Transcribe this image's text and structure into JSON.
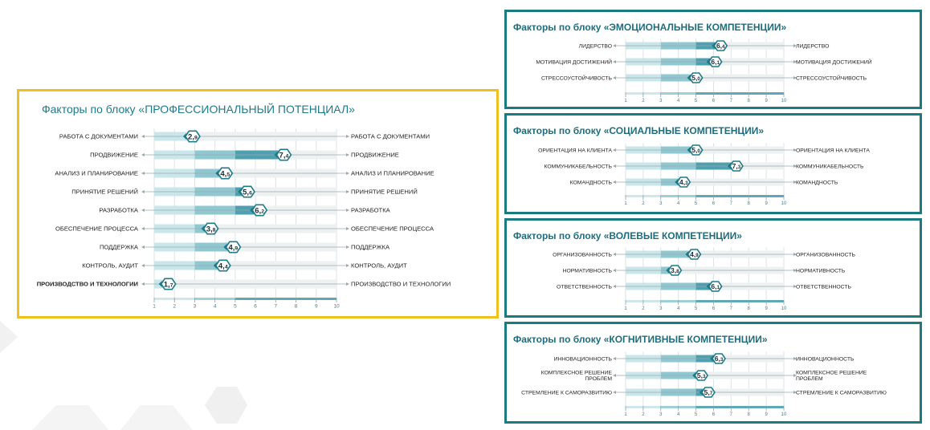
{
  "theme": {
    "accent": "#1f7a88",
    "bar_light": "#c9e6ea",
    "bar_mid": "#8fc8d1",
    "bar_dark": "#4e9faf",
    "main_border": "#f0c020",
    "side_border": "#1b7b81"
  },
  "panels": [
    {
      "title": "Факторы по блоку «ПРОФЕССИОНАЛЬНЫЙ ПОТЕНЦИАЛ»"
    },
    {
      "title": "Факторы по блоку «ЭМОЦИОНАЛЬНЫЕ КОМПЕТЕНЦИИ»"
    },
    {
      "title": "Факторы по блоку «СОЦИАЛЬНЫЕ КОМПЕТЕНЦИИ»"
    },
    {
      "title": "Факторы по блоку «ВОЛЕВЫЕ КОМПЕТЕНЦИИ»"
    },
    {
      "title": "Факторы по блоку «КОГНИТИВНЫЕ КОМПЕТЕНЦИИ»"
    }
  ],
  "chart_data": [
    {
      "type": "bar",
      "title": "Факторы по блоку «ПРОФЕССИОНАЛЬНЫЙ ПОТЕНЦИАЛ»",
      "xlim": [
        1,
        10
      ],
      "ticks": [
        "1",
        "2",
        "3",
        "4",
        "5",
        "6",
        "7",
        "8",
        "9",
        "10"
      ],
      "rows": [
        {
          "label": "РАБОТА С ДОКУМЕНТАМИ",
          "right_label": "РАБОТА С ДОКУМЕНТАМИ",
          "value": 2.9,
          "int": "2",
          "dec": "9"
        },
        {
          "label": "ПРОДВИЖЕНИЕ",
          "right_label": "ПРОДВИЖЕНИЕ",
          "value": 7.4,
          "int": "7",
          "dec": "4"
        },
        {
          "label": "АНАЛИЗ И ПЛАНИРОВАНИЕ",
          "right_label": "АНАЛИЗ И ПЛАНИРОВАНИЕ",
          "value": 4.5,
          "int": "4",
          "dec": "5"
        },
        {
          "label": "ПРИНЯТИЕ РЕШЕНИЙ",
          "right_label": "ПРИНЯТИЕ РЕШЕНИЙ",
          "value": 5.6,
          "int": "5",
          "dec": "6"
        },
        {
          "label": "РАЗРАБОТКА",
          "right_label": "РАЗРАБОТКА",
          "value": 6.2,
          "int": "6",
          "dec": "2"
        },
        {
          "label": "ОБЕСПЕЧЕНИЕ ПРОЦЕССА",
          "right_label": "ОБЕСПЕЧЕНИЕ ПРОЦЕССА",
          "value": 3.8,
          "int": "3",
          "dec": "8"
        },
        {
          "label": "ПОДДЕРЖКА",
          "right_label": "ПОДДЕРЖКА",
          "value": 4.9,
          "int": "4",
          "dec": "9"
        },
        {
          "label": "КОНТРОЛЬ, АУДИТ",
          "right_label": "КОНТРОЛЬ, АУДИТ",
          "value": 4.4,
          "int": "4",
          "dec": "4"
        },
        {
          "label": "ПРОИЗВОДСТВО И ТЕХНОЛОГИИ",
          "right_label": "ПРОИЗВОДСТВО И ТЕХНОЛОГИИ",
          "value": 1.7,
          "int": "1",
          "dec": "7",
          "bold": true
        }
      ]
    },
    {
      "type": "bar",
      "title": "Факторы по блоку «ЭМОЦИОНАЛЬНЫЕ КОМПЕТЕНЦИИ»",
      "xlim": [
        1,
        10
      ],
      "ticks": [
        "1",
        "2",
        "3",
        "4",
        "5",
        "6",
        "7",
        "8",
        "9",
        "10"
      ],
      "rows": [
        {
          "label": "ЛИДЕРСТВО",
          "right_label": "ЛИДЕРСТВО",
          "value": 6.4,
          "int": "6",
          "dec": "4"
        },
        {
          "label": "МОТИВАЦИЯ ДОСТИЖЕНИЙ",
          "right_label": "МОТИВАЦИЯ ДОСТИЖЕНИЙ",
          "value": 6.1,
          "int": "6",
          "dec": "1"
        },
        {
          "label": "СТРЕССОУСТОЙЧИВОСТЬ",
          "right_label": "СТРЕССОУСТОЙЧИВОСТЬ",
          "value": 5.0,
          "int": "5",
          "dec": "0"
        }
      ]
    },
    {
      "type": "bar",
      "title": "Факторы по блоку «СОЦИАЛЬНЫЕ КОМПЕТЕНЦИИ»",
      "xlim": [
        1,
        10
      ],
      "ticks": [
        "1",
        "2",
        "3",
        "4",
        "5",
        "6",
        "7",
        "8",
        "9",
        "10"
      ],
      "rows": [
        {
          "label": "ОРИЕНТАЦИЯ НА КЛИЕНТА",
          "right_label": "ОРИЕНТАЦИЯ НА КЛИЕНТА",
          "value": 5.0,
          "int": "5",
          "dec": "0"
        },
        {
          "label": "КОММУНИКАБЕЛЬНОСТЬ",
          "right_label": "КОММУНИКАБЕЛЬНОСТЬ",
          "value": 7.3,
          "int": "7",
          "dec": "3"
        },
        {
          "label": "КОМАНДНОСТЬ",
          "right_label": "КОМАНДНОСТЬ",
          "value": 4.3,
          "int": "4",
          "dec": "3"
        }
      ]
    },
    {
      "type": "bar",
      "title": "Факторы по блоку «ВОЛЕВЫЕ КОМПЕТЕНЦИИ»",
      "xlim": [
        1,
        10
      ],
      "ticks": [
        "1",
        "2",
        "3",
        "4",
        "5",
        "6",
        "7",
        "8",
        "9",
        "10"
      ],
      "rows": [
        {
          "label": "ОРГАНИЗОВАННОСТЬ",
          "right_label": "ОРГАНИЗОВАННОСТЬ",
          "value": 4.9,
          "int": "4",
          "dec": "9"
        },
        {
          "label": "НОРМАТИВНОСТЬ",
          "right_label": "НОРМАТИВНОСТЬ",
          "value": 3.8,
          "int": "3",
          "dec": "8"
        },
        {
          "label": "ОТВЕТСТВЕННОСТЬ",
          "right_label": "ОТВЕТСТВЕННОСТЬ",
          "value": 6.1,
          "int": "6",
          "dec": "1"
        }
      ]
    },
    {
      "type": "bar",
      "title": "Факторы по блоку «КОГНИТИВНЫЕ КОМПЕТЕНЦИИ»",
      "xlim": [
        1,
        10
      ],
      "ticks": [
        "1",
        "2",
        "3",
        "4",
        "5",
        "6",
        "7",
        "8",
        "9",
        "10"
      ],
      "rows": [
        {
          "label": "ИННОВАЦИОННОСТЬ",
          "right_label": "ИННОВАЦИОННОСТЬ",
          "value": 6.3,
          "int": "6",
          "dec": "3"
        },
        {
          "label": [
            "КОМПЛЕКСНОЕ РЕШЕНИЕ",
            "ПРОБЛЕМ"
          ],
          "right_label": [
            "КОМПЛЕКСНОЕ РЕШЕНИЕ",
            "ПРОБЛЕМ"
          ],
          "value": 5.3,
          "int": "5",
          "dec": "3"
        },
        {
          "label": "СТРЕМЛЕНИЕ К САМОРАЗВИТИЮ",
          "right_label": "СТРЕМЛЕНИЕ К САМОРАЗВИТИЮ",
          "value": 5.7,
          "int": "5",
          "dec": "7"
        }
      ]
    }
  ]
}
